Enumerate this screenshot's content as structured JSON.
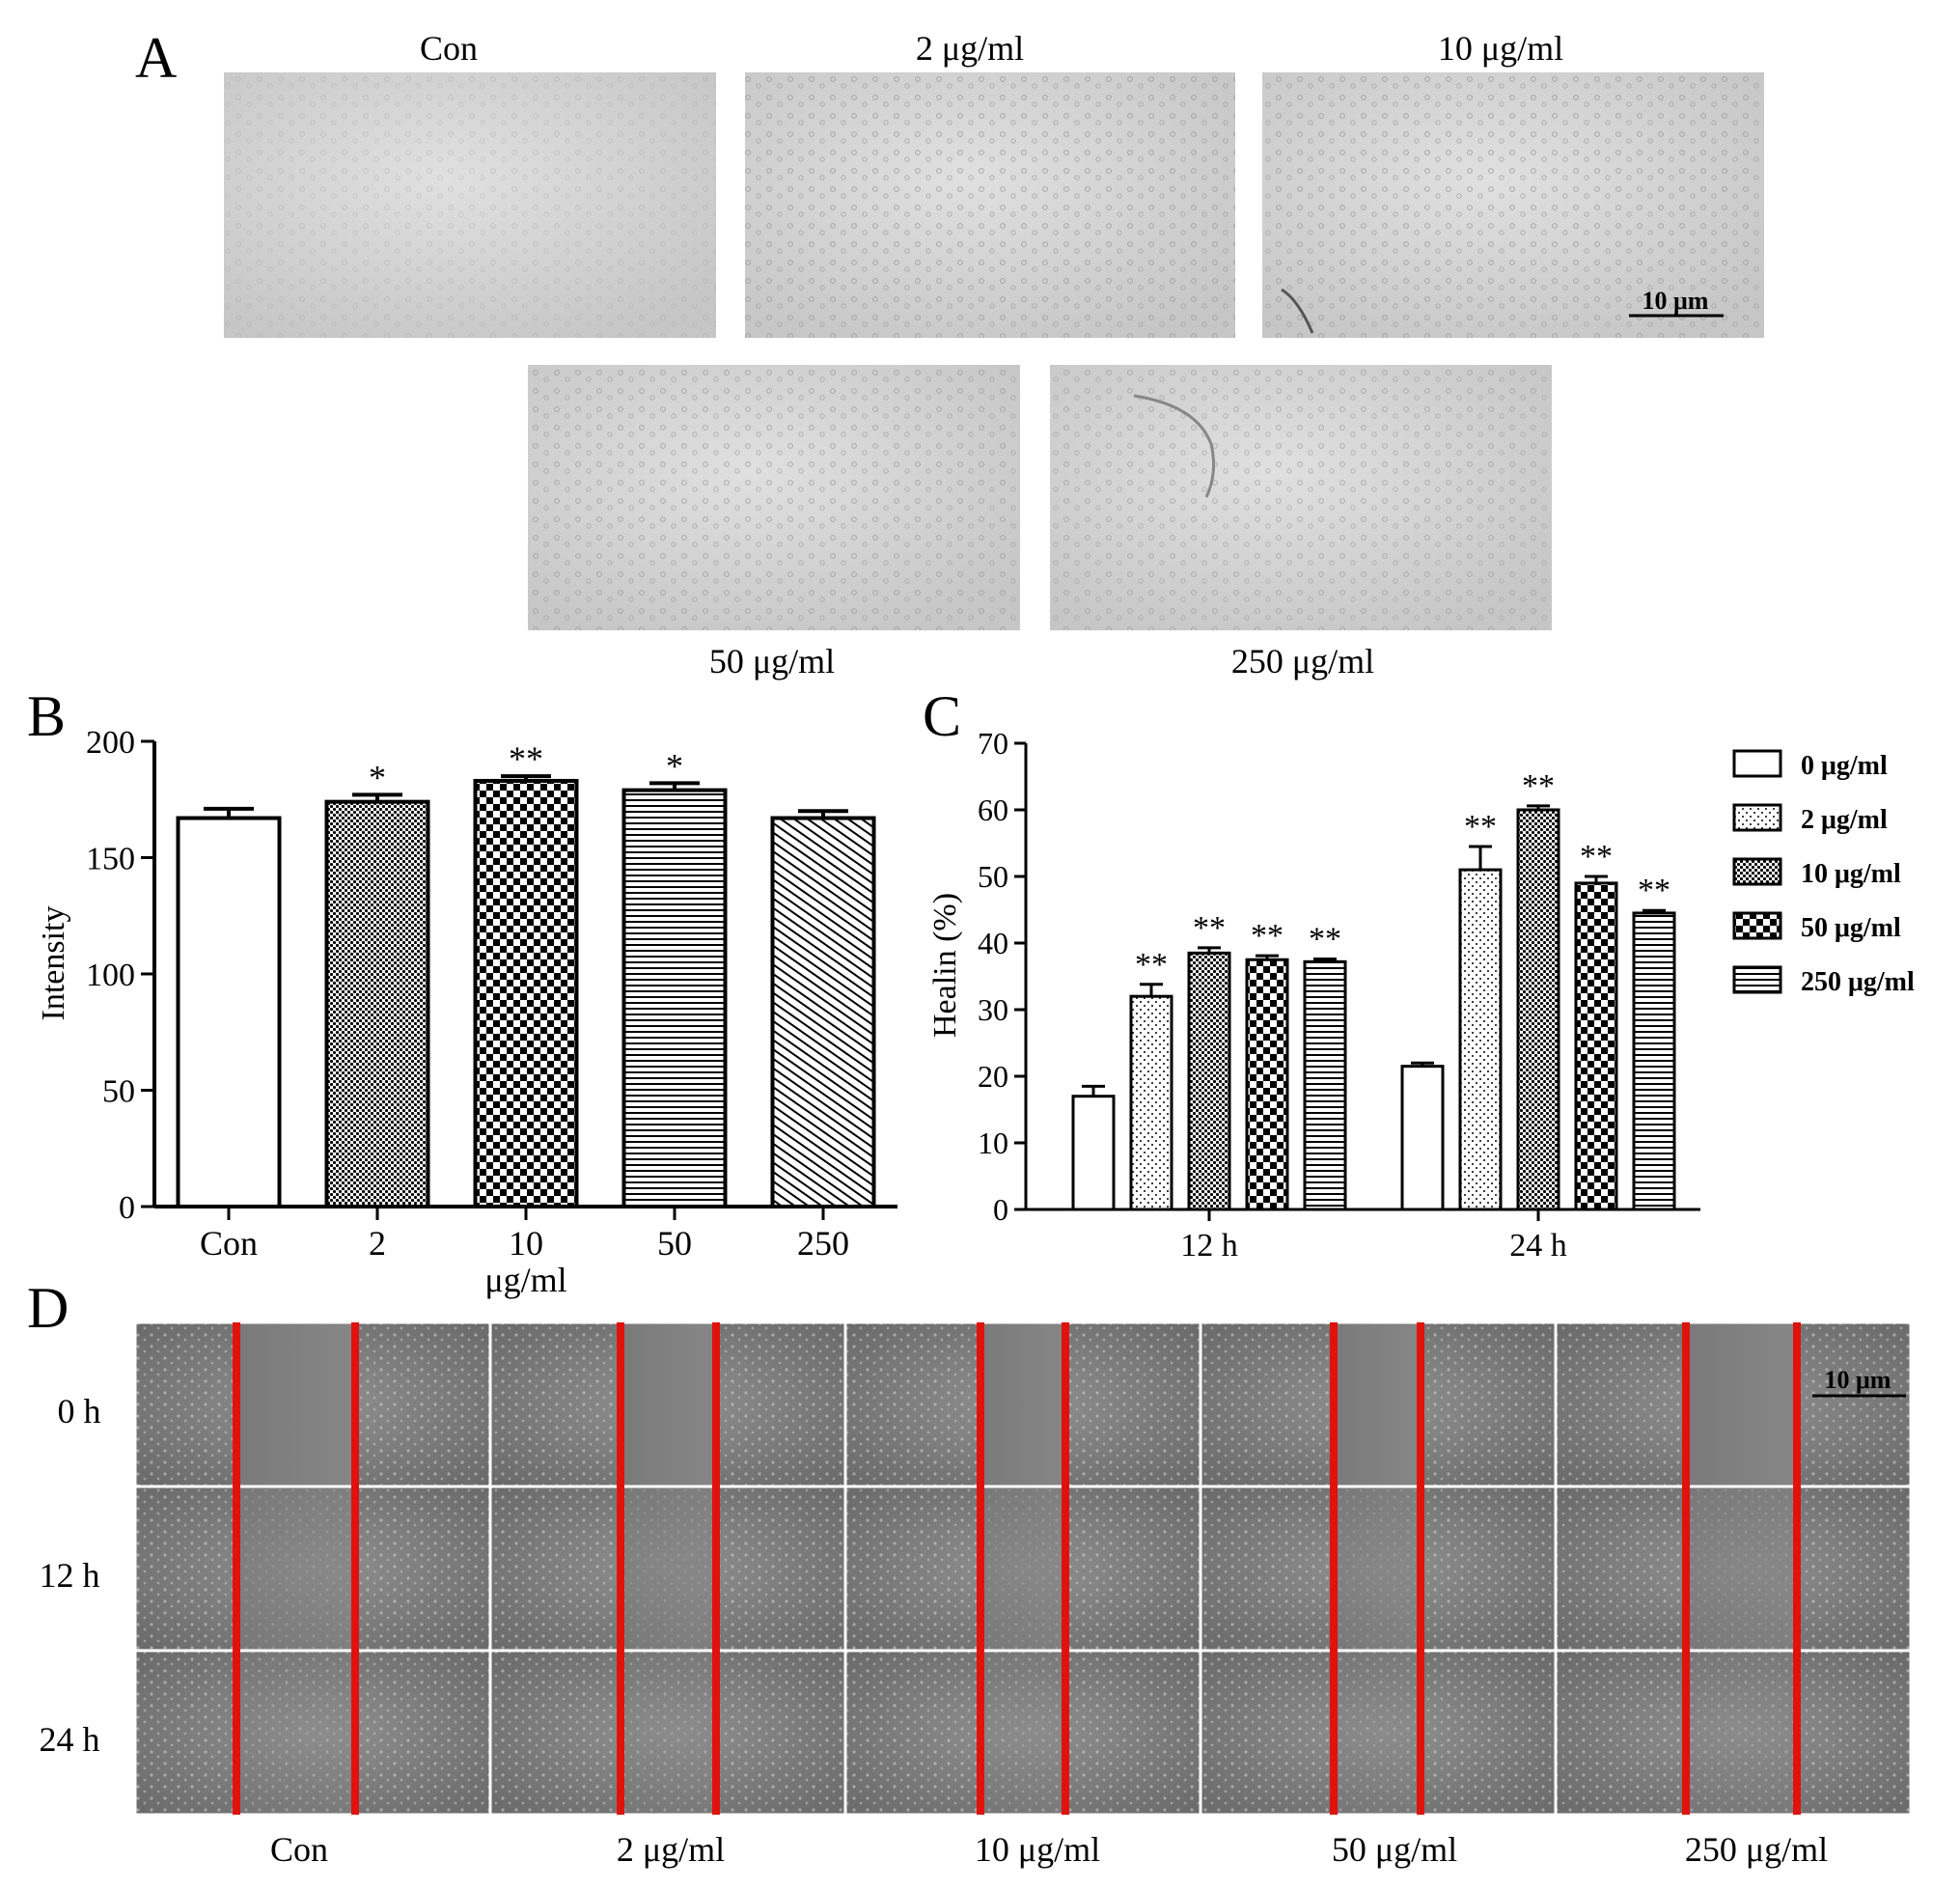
{
  "panels": {
    "a": {
      "letter": "A",
      "images": [
        {
          "label": "Con"
        },
        {
          "label": "2 μg/ml"
        },
        {
          "label": "10 μg/ml"
        },
        {
          "label": "50 μg/ml"
        },
        {
          "label": "250 μg/ml"
        }
      ],
      "scale_bar": "10 μm"
    },
    "b": {
      "letter": "B"
    },
    "c": {
      "letter": "C"
    },
    "d": {
      "letter": "D",
      "rows": [
        "0 h",
        "12 h",
        "24 h"
      ],
      "columns": [
        "Con",
        "2 μg/ml",
        "10 μg/ml",
        "50 μg/ml",
        "250 μg/ml"
      ],
      "scale_bar": "10 μm",
      "wound_line_color": "#e0120c"
    }
  },
  "chart_data": [
    {
      "id": "B",
      "type": "bar",
      "categories": [
        "Con",
        "2",
        "10",
        "50",
        "250"
      ],
      "values": [
        167,
        174,
        183,
        179,
        167
      ],
      "errors": [
        4,
        3,
        2,
        3,
        3
      ],
      "significance": [
        "",
        "*",
        "**",
        "*",
        ""
      ],
      "patterns": [
        "white",
        "dots-dense",
        "checker",
        "hlines",
        "diagonal"
      ],
      "ylabel": "Intensity",
      "xlabel": "μg/ml",
      "ylim": [
        0,
        200
      ],
      "yticks": [
        0,
        50,
        100,
        150,
        200
      ],
      "grid": false
    },
    {
      "id": "C",
      "type": "bar",
      "categories": [
        "12 h",
        "24 h"
      ],
      "series": [
        {
          "name": "0 μg/ml",
          "values": [
            17,
            21.5
          ],
          "errors": [
            1.5,
            0.5
          ],
          "significance": [
            "",
            ""
          ],
          "pattern": "white"
        },
        {
          "name": "2 μg/ml",
          "values": [
            32,
            51
          ],
          "errors": [
            1.8,
            3.5
          ],
          "significance": [
            "**",
            "**"
          ],
          "pattern": "dots-sparse"
        },
        {
          "name": "10 μg/ml",
          "values": [
            38.5,
            60
          ],
          "errors": [
            0.8,
            0.6
          ],
          "significance": [
            "**",
            "**"
          ],
          "pattern": "dots-dense"
        },
        {
          "name": "50 μg/ml",
          "values": [
            37.5,
            49
          ],
          "errors": [
            0.6,
            1
          ],
          "significance": [
            "**",
            "**"
          ],
          "pattern": "checker"
        },
        {
          "name": "250 μg/ml",
          "values": [
            37.2,
            44.5
          ],
          "errors": [
            0.4,
            0.4
          ],
          "significance": [
            "**",
            "**"
          ],
          "pattern": "hlines"
        }
      ],
      "ylabel": "Healin (%)",
      "ylim": [
        0,
        70
      ],
      "yticks": [
        0,
        10,
        20,
        30,
        40,
        50,
        60,
        70
      ],
      "legend_position": "right",
      "grid": false
    }
  ]
}
